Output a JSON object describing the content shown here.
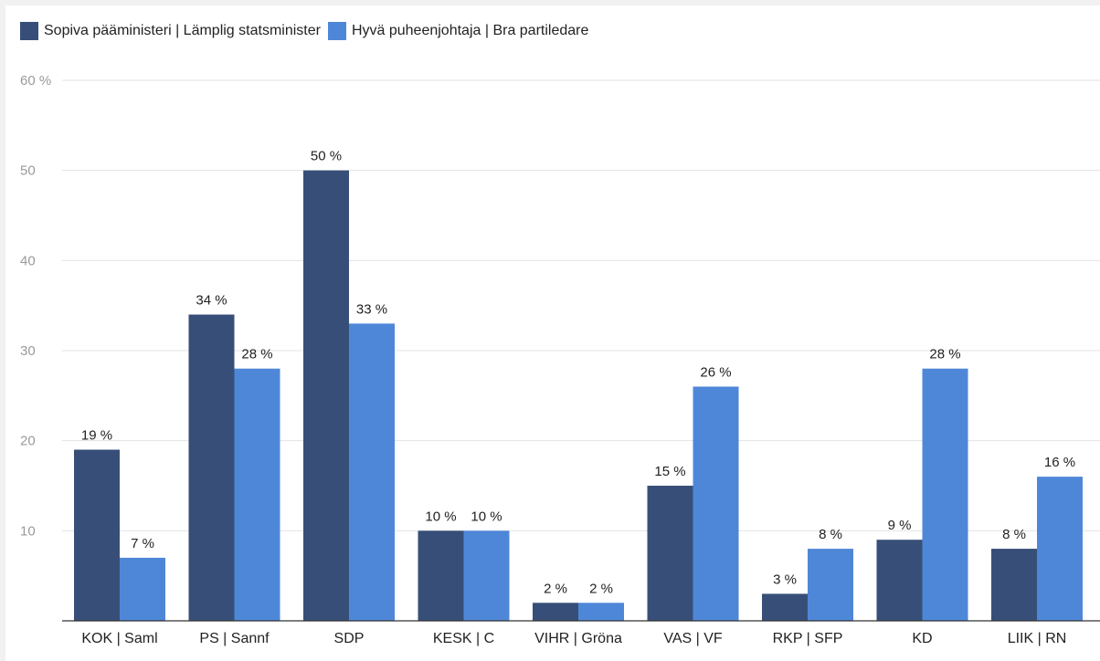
{
  "chart_data": {
    "type": "bar",
    "categories": [
      "KOK | Saml",
      "PS | Sannf",
      "SDP",
      "KESK | C",
      "VIHR | Gröna",
      "VAS | VF",
      "RKP | SFP",
      "KD",
      "LIIK | RN"
    ],
    "series": [
      {
        "name": "Sopiva pääministeri | Lämplig statsminister",
        "color": "#374f78",
        "values": [
          19,
          34,
          50,
          10,
          2,
          15,
          3,
          9,
          8
        ],
        "labels": [
          "19 %",
          "34 %",
          "50 %",
          "10 %",
          "2 %",
          "15 %",
          "3 %",
          "9 %",
          "8 %"
        ]
      },
      {
        "name": "Hyvä puheenjohtaja | Bra partiledare",
        "color": "#4f87d8",
        "values": [
          7,
          28,
          33,
          10,
          2,
          26,
          8,
          28,
          16
        ],
        "labels": [
          "7 %",
          "28 %",
          "33 %",
          "10 %",
          "2 %",
          "26 %",
          "8 %",
          "28 %",
          "16 %"
        ]
      }
    ],
    "ylim": [
      0,
      60
    ],
    "yticks": [
      10,
      20,
      30,
      40,
      50,
      60
    ],
    "ytick_labels": [
      "10",
      "20",
      "30",
      "40",
      "50",
      "60 %"
    ],
    "grid": true,
    "legend_position": "top-left"
  }
}
